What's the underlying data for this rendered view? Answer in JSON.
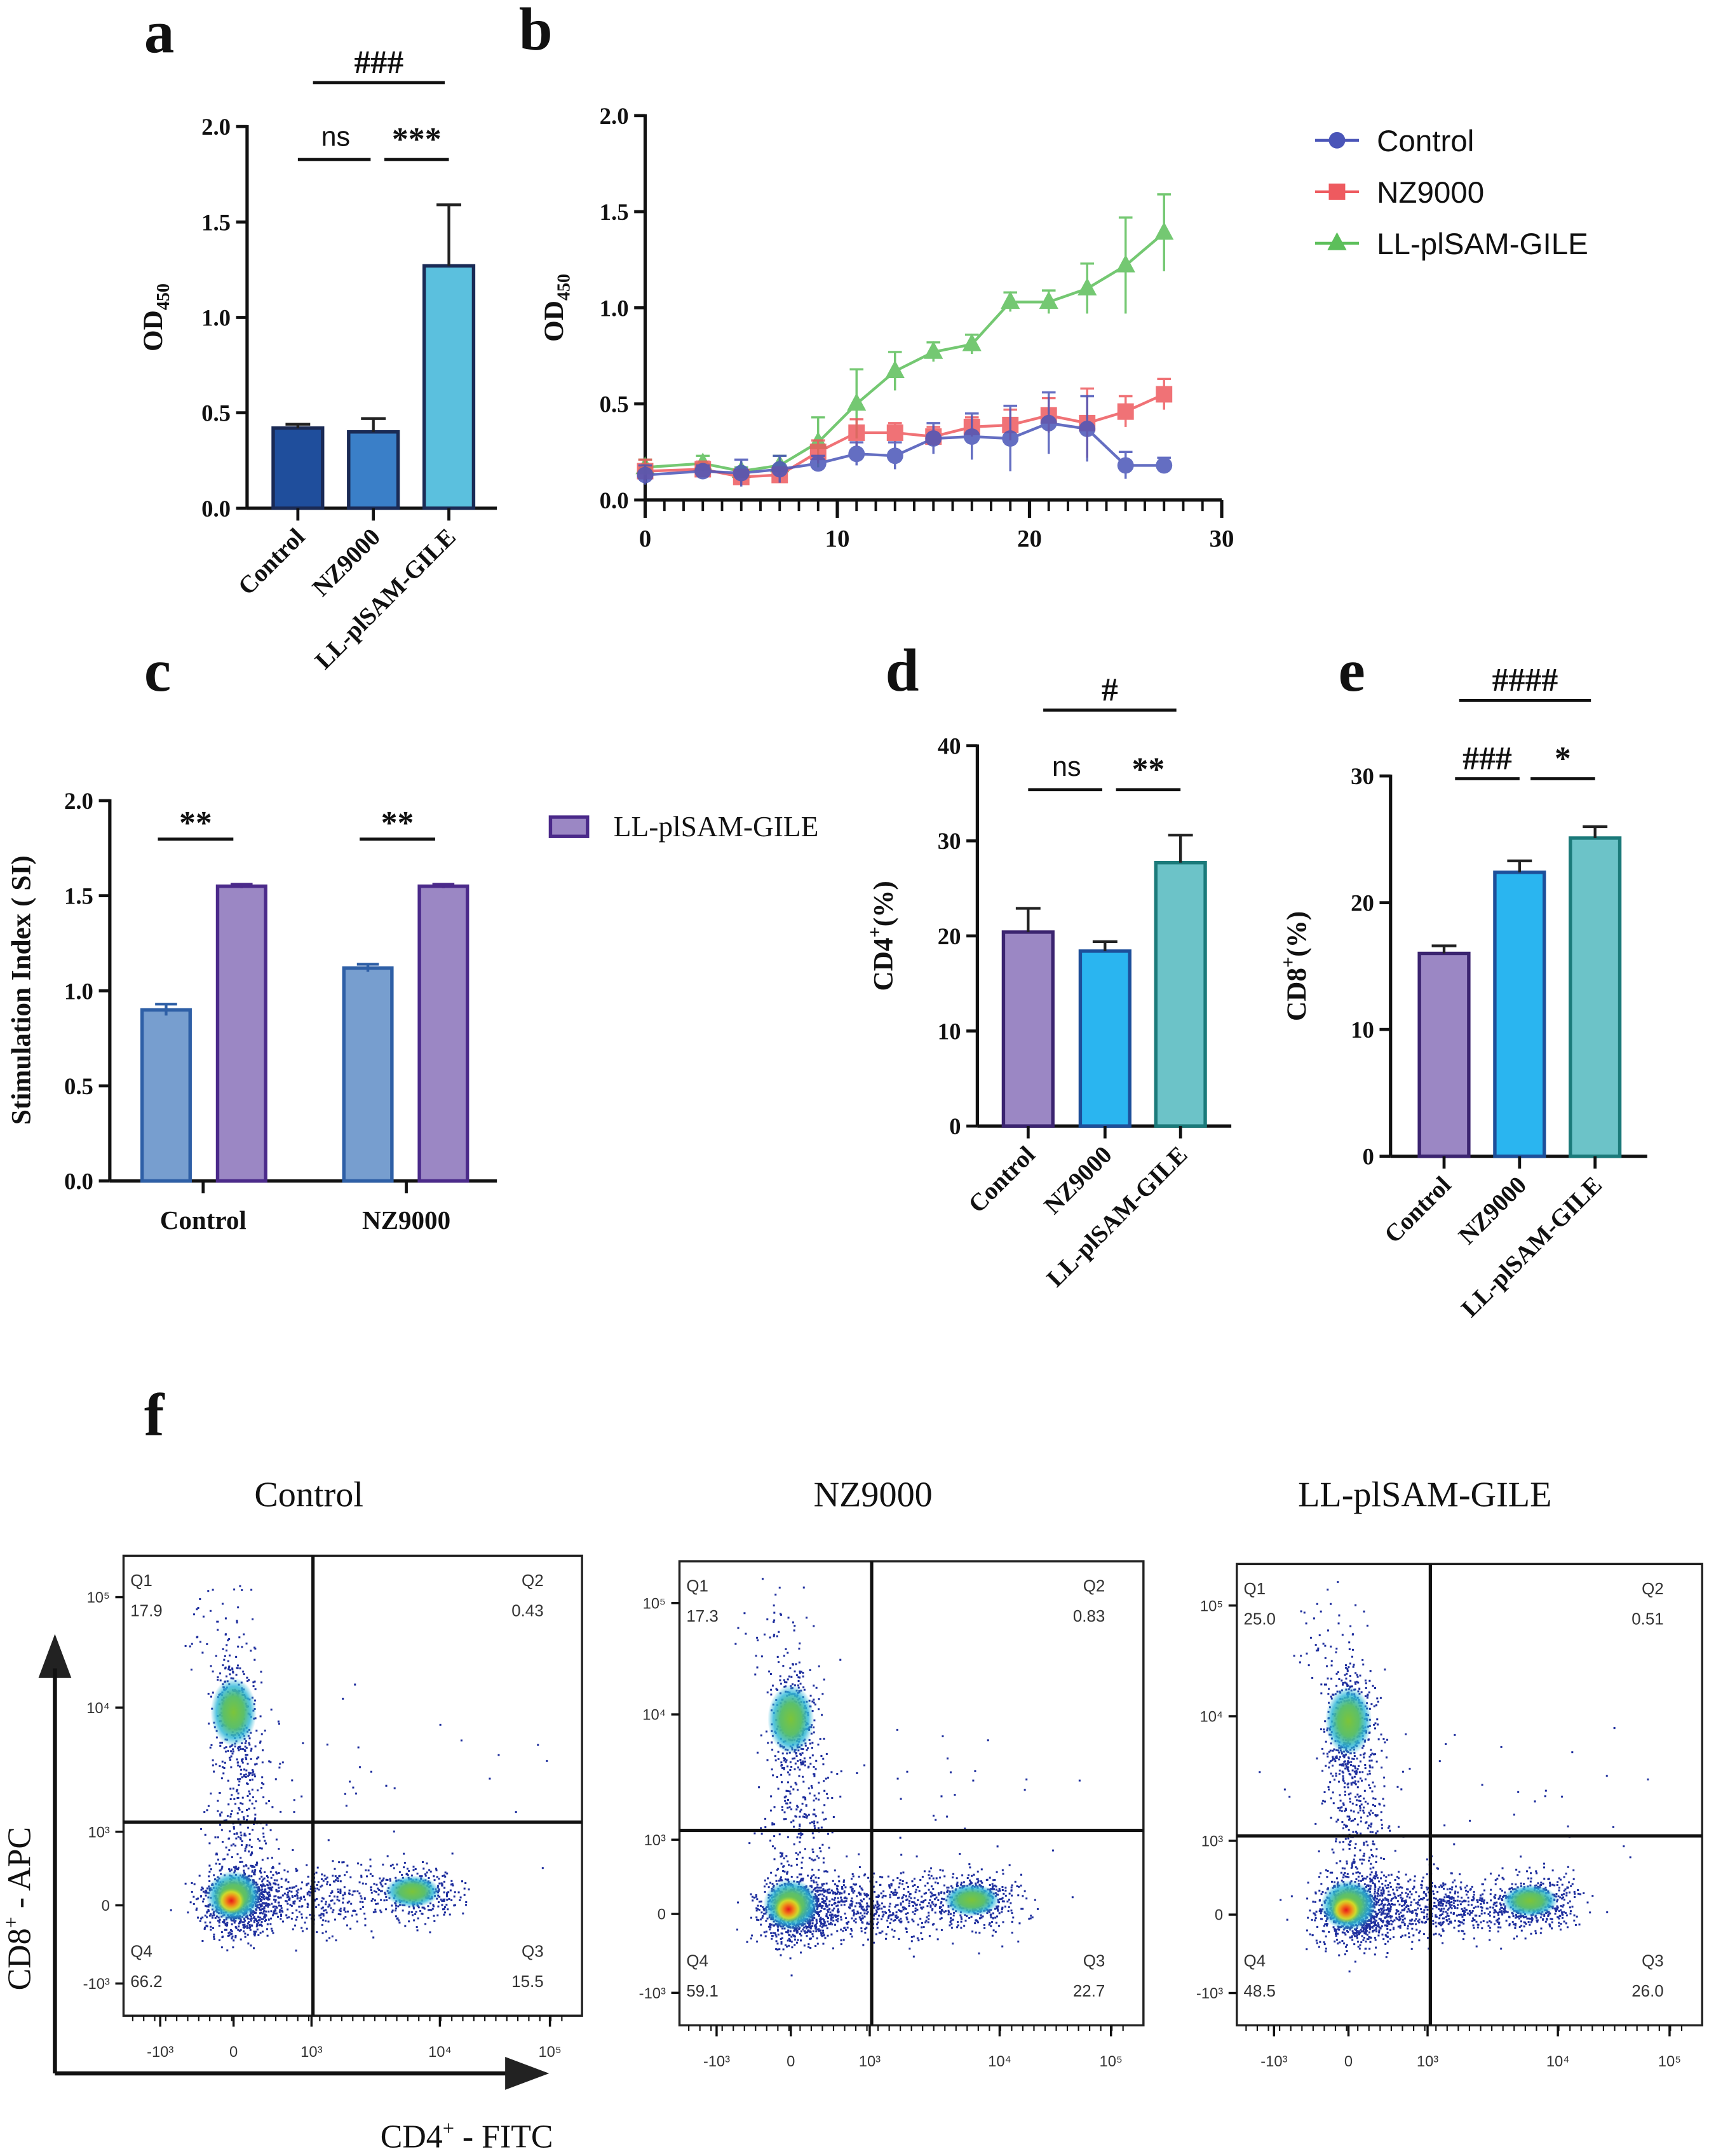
{
  "panels": {
    "a": "a",
    "b": "b",
    "c": "c",
    "d": "d",
    "e": "e",
    "f": "f"
  },
  "chart_data": [
    {
      "panel": "a",
      "type": "bar",
      "categories": [
        "Control",
        "NZ9000",
        "LL-plSAM-GILE"
      ],
      "values": [
        0.42,
        0.4,
        1.27
      ],
      "errors": [
        0.02,
        0.07,
        0.32
      ],
      "colors": [
        "#1f4e9c",
        "#3a7fc8",
        "#5bc0de"
      ],
      "ylabel": "OD",
      "ylabel_sub": "450",
      "ylim": [
        0,
        2.0
      ],
      "yticks": [
        "0.0",
        "0.5",
        "1.0",
        "1.5",
        "2.0"
      ],
      "significance": [
        {
          "from": 0,
          "to": 2,
          "label": "###"
        },
        {
          "from": 0,
          "to": 1,
          "label": "ns"
        },
        {
          "from": 1,
          "to": 2,
          "label": "***"
        }
      ]
    },
    {
      "panel": "b",
      "type": "line",
      "x": [
        0,
        3,
        5,
        7,
        9,
        11,
        13,
        15,
        17,
        19,
        21,
        23,
        25,
        27
      ],
      "xlim": [
        0,
        30
      ],
      "xticks": [
        "0",
        "10",
        "20",
        "30"
      ],
      "ylim": [
        0,
        2.0
      ],
      "yticks": [
        "0.0",
        "0.5",
        "1.0",
        "1.5",
        "2.0"
      ],
      "ylabel": "OD",
      "ylabel_sub": "450",
      "legend_position": "top-right",
      "series": [
        {
          "name": "Control",
          "marker": "circle",
          "color": "#4a55b8",
          "values": [
            0.13,
            0.15,
            0.14,
            0.16,
            0.19,
            0.24,
            0.23,
            0.32,
            0.33,
            0.32,
            0.4,
            0.37,
            0.18,
            0.18
          ],
          "errors": [
            0.05,
            0.03,
            0.07,
            0.07,
            0.04,
            0.06,
            0.07,
            0.08,
            0.12,
            0.17,
            0.16,
            0.17,
            0.07,
            0.04
          ]
        },
        {
          "name": "NZ9000",
          "marker": "square",
          "color": "#ee5a5f",
          "values": [
            0.15,
            0.16,
            0.12,
            0.13,
            0.25,
            0.35,
            0.35,
            0.33,
            0.38,
            0.39,
            0.44,
            0.4,
            0.46,
            0.55
          ],
          "errors": [
            0.06,
            0.04,
            0.03,
            0.04,
            0.06,
            0.07,
            0.05,
            0.05,
            0.05,
            0.08,
            0.09,
            0.18,
            0.08,
            0.08
          ]
        },
        {
          "name": "LL-plSAM-GILE",
          "marker": "triangle",
          "color": "#5cbf5a",
          "values": [
            0.17,
            0.19,
            0.15,
            0.18,
            0.3,
            0.5,
            0.67,
            0.77,
            0.81,
            1.03,
            1.03,
            1.1,
            1.22,
            1.39
          ],
          "errors": [
            0.04,
            0.04,
            0.02,
            0.05,
            0.13,
            0.18,
            0.1,
            0.05,
            0.05,
            0.05,
            0.06,
            0.13,
            0.25,
            0.2
          ]
        }
      ]
    },
    {
      "panel": "c",
      "type": "bar",
      "categories": [
        "Control",
        "NZ9000"
      ],
      "ylabel": "Stimulation Index ( SI)",
      "ylim": [
        0,
        2.0
      ],
      "yticks": [
        "0.0",
        "0.5",
        "1.0",
        "1.5",
        "2.0"
      ],
      "legend_position": "right",
      "series": [
        {
          "name": "",
          "color": "#779ecf",
          "stroke": "#2e5fa6",
          "values": [
            0.9,
            1.12
          ],
          "errors": [
            0.03,
            0.02
          ]
        },
        {
          "name": "LL-plSAM-GILE",
          "color": "#9b87c4",
          "stroke": "#4b2a8a",
          "values": [
            1.55,
            1.55
          ],
          "errors": [
            0.01,
            0.01
          ]
        }
      ],
      "significance": [
        {
          "group": 0,
          "label": "**"
        },
        {
          "group": 1,
          "label": "**"
        }
      ]
    },
    {
      "panel": "d",
      "type": "bar",
      "categories": [
        "Control",
        "NZ9000",
        "LL-plSAM-GILE"
      ],
      "values": [
        20.4,
        18.4,
        27.7
      ],
      "errors": [
        2.5,
        1.0,
        2.9
      ],
      "colors": [
        "#9b87c4",
        "#2ab5f0",
        "#6cc3c8"
      ],
      "strokes": [
        "#3b2470",
        "#1d4f9a",
        "#1b7a7a"
      ],
      "ylabel": "CD4",
      "ylabel_sup": "+",
      "ylabel_unit": "(%)",
      "ylim": [
        0,
        40
      ],
      "yticks": [
        "0",
        "10",
        "20",
        "30",
        "40"
      ],
      "significance": [
        {
          "from": 0,
          "to": 2,
          "label": "#"
        },
        {
          "from": 0,
          "to": 1,
          "label": "ns"
        },
        {
          "from": 1,
          "to": 2,
          "label": "**"
        }
      ]
    },
    {
      "panel": "e",
      "type": "bar",
      "categories": [
        "Control",
        "NZ9000",
        "LL-plSAM-GILE"
      ],
      "values": [
        16.0,
        22.4,
        25.1
      ],
      "errors": [
        0.6,
        0.9,
        0.9
      ],
      "colors": [
        "#9b87c4",
        "#2ab5f0",
        "#6cc3c8"
      ],
      "strokes": [
        "#3b2470",
        "#1d4f9a",
        "#1b7a7a"
      ],
      "ylabel": "CD8",
      "ylabel_sup": "+",
      "ylabel_unit": "(%)",
      "ylim": [
        0,
        30
      ],
      "yticks": [
        "0",
        "10",
        "20",
        "30"
      ],
      "significance": [
        {
          "from": 0,
          "to": 2,
          "label": "####"
        },
        {
          "from": 0,
          "to": 1,
          "label": "###"
        },
        {
          "from": 1,
          "to": 2,
          "label": "*"
        }
      ]
    }
  ],
  "flow": {
    "y_axis_label": "CD8",
    "y_axis_sup": "+",
    "y_axis_rest": " - APC",
    "x_axis_label": "CD4",
    "x_axis_sup": "+",
    "x_axis_rest": " - FITC",
    "xticks": [
      "-10³",
      "0",
      "10³",
      "10⁴",
      "10⁵"
    ],
    "yticks": [
      "10⁵",
      "10⁴",
      "10³",
      "0",
      "-10³"
    ],
    "plots": [
      {
        "title": "Control",
        "Q1": "17.9",
        "Q2": "0.43",
        "Q3": "15.5",
        "Q4": "66.2"
      },
      {
        "title": "NZ9000",
        "Q1": "17.3",
        "Q2": "0.83",
        "Q3": "22.7",
        "Q4": "59.1"
      },
      {
        "title": "LL-plSAM-GILE",
        "Q1": "25.0",
        "Q2": "0.51",
        "Q3": "26.0",
        "Q4": "48.5"
      }
    ],
    "quadrant_names": [
      "Q1",
      "Q2",
      "Q3",
      "Q4"
    ]
  }
}
